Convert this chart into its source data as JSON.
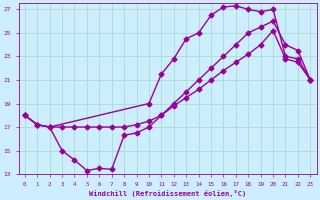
{
  "xlabel": "Windchill (Refroidissement éolien,°C)",
  "bg_color": "#cceeff",
  "grid_color": "#aaddcc",
  "line_color": "#990099",
  "xlim": [
    -0.5,
    23.5
  ],
  "ylim": [
    13,
    27.5
  ],
  "yticks": [
    13,
    15,
    17,
    19,
    21,
    23,
    25,
    27
  ],
  "xticks": [
    0,
    1,
    2,
    3,
    4,
    5,
    6,
    7,
    8,
    9,
    10,
    11,
    12,
    13,
    14,
    15,
    16,
    17,
    18,
    19,
    20,
    21,
    22,
    23
  ],
  "line1_x": [
    0,
    1,
    2,
    3,
    4,
    5,
    6,
    7,
    8,
    9,
    10,
    11,
    12,
    13,
    14,
    15,
    16,
    17,
    18,
    19,
    20,
    21,
    22,
    23
  ],
  "line1_y": [
    18.0,
    17.2,
    17.0,
    15.0,
    14.2,
    13.3,
    13.5,
    13.4,
    16.3,
    16.5,
    17.0,
    18.0,
    18.8,
    19.5,
    20.2,
    21.0,
    21.8,
    22.5,
    23.2,
    24.0,
    25.2,
    22.8,
    22.5,
    21.0
  ],
  "line2_x": [
    0,
    1,
    2,
    3,
    4,
    5,
    6,
    7,
    8,
    9,
    10,
    11,
    12,
    13,
    14,
    15,
    16,
    17,
    18,
    19,
    20,
    21,
    22,
    23
  ],
  "line2_y": [
    18.0,
    17.2,
    17.0,
    17.0,
    17.0,
    17.0,
    17.0,
    17.0,
    17.0,
    17.2,
    17.5,
    18.0,
    19.0,
    20.0,
    21.0,
    22.0,
    23.0,
    24.0,
    25.0,
    25.5,
    26.0,
    24.0,
    23.5,
    21.0
  ],
  "line3_x": [
    0,
    1,
    2,
    10,
    11,
    12,
    13,
    14,
    15,
    16,
    17,
    18,
    19,
    20,
    21,
    22,
    23
  ],
  "line3_y": [
    18.0,
    17.2,
    17.0,
    19.0,
    21.5,
    22.8,
    24.5,
    25.0,
    26.5,
    27.2,
    27.3,
    27.0,
    26.8,
    27.0,
    23.0,
    22.8,
    21.0
  ],
  "marker": "D",
  "markersize": 2.5,
  "linewidth": 1.0
}
